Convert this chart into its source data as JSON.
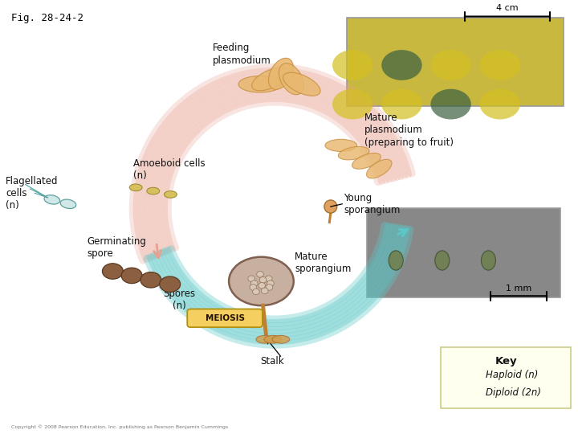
{
  "title": "Fig. 28-24-2",
  "colors": {
    "bg_color": "#ffffff",
    "haploid_arrow": "#5bc8c8",
    "diploid_arrow": "#e8a090",
    "meiosis_box": "#f5d060",
    "key_box": "#fffff0",
    "key_box_border": "#cccc88",
    "text_dark": "#111111",
    "photo_top_bg": "#c8b840",
    "photo_bot_bg": "#888888",
    "blob_face": "#e8b870",
    "blob_edge": "#c89040",
    "spore_face": "#c8b0a0",
    "spore_edge": "#806050",
    "stalk_color": "#c08030",
    "germ_face": "#8b6040",
    "germ_edge": "#5a3820",
    "flag_face": "#d0e8e8",
    "flag_edge": "#60a0a0",
    "amoe_face": "#d8c060",
    "amoe_edge": "#a09030"
  },
  "labels": {
    "feeding_plasmodium": "Feeding\nplasmodium",
    "mature_plasmodium": "Mature\nplasmodium\n(preparing to fruit)",
    "flagellated_cells": "Flagellated\ncells\n(n)",
    "amoeboid_cells": "Amoeboid cells\n(n)",
    "germinating_spore": "Germinating\nspore",
    "young_sporangium": "Young\nsporangium",
    "mature_sporangium": "Mature\nsporangium",
    "spores": "Spores\n(n)",
    "meiosis": "MEIOSIS",
    "stalk": "Stalk",
    "key_title": "Key",
    "haploid": "Haploid (n)",
    "diploid": "Diploid (2n)",
    "scale_4cm": "4 cm",
    "scale_1mm": "1 mm",
    "copyright": "Copyright © 2008 Pearson Education, Inc. publishing as Pearson Benjamin Cummings"
  }
}
